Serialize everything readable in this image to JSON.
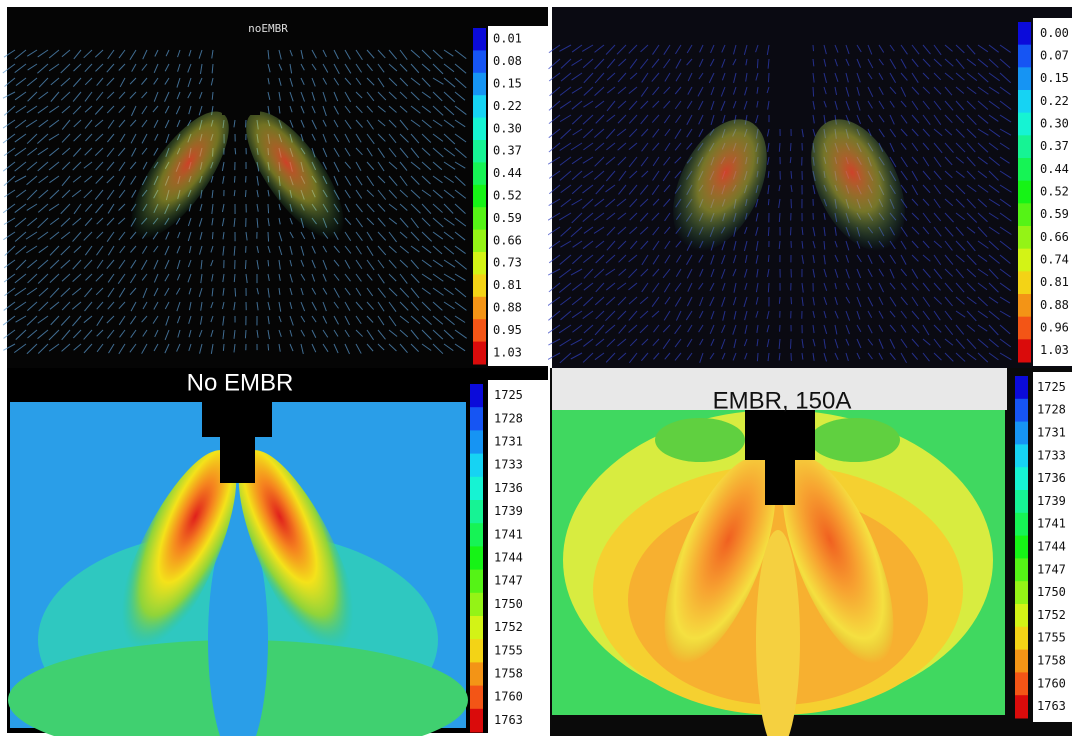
{
  "left": {
    "title": "noEMBR",
    "caption": "No EMBR",
    "velocity_scale": [
      "0.01",
      "0.08",
      "0.15",
      "0.22",
      "0.30",
      "0.37",
      "0.44",
      "0.52",
      "0.59",
      "0.66",
      "0.73",
      "0.81",
      "0.88",
      "0.95",
      "1.03"
    ],
    "temperature_scale": [
      "1725",
      "1728",
      "1731",
      "1733",
      "1736",
      "1739",
      "1741",
      "1744",
      "1747",
      "1750",
      "1752",
      "1755",
      "1758",
      "1760",
      "1763"
    ]
  },
  "right": {
    "caption": "EMBR, 150A",
    "velocity_scale": [
      "0.00",
      "0.07",
      "0.15",
      "0.22",
      "0.30",
      "0.37",
      "0.44",
      "0.52",
      "0.59",
      "0.66",
      "0.74",
      "0.81",
      "0.88",
      "0.96",
      "1.03"
    ],
    "temperature_scale": [
      "1725",
      "1728",
      "1731",
      "1733",
      "1736",
      "1739",
      "1741",
      "1744",
      "1747",
      "1750",
      "1752",
      "1755",
      "1758",
      "1760",
      "1763"
    ]
  }
}
